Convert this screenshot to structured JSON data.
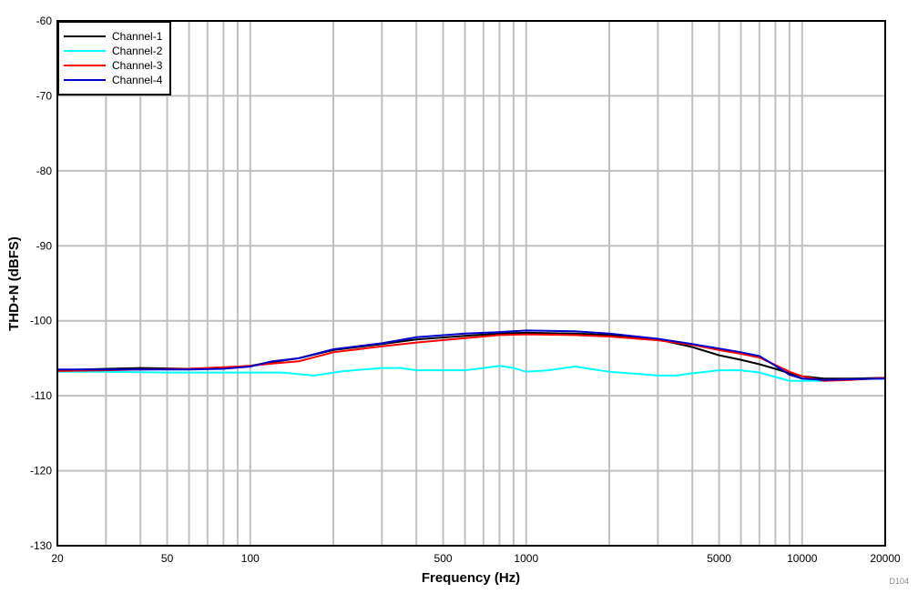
{
  "chart_data": {
    "type": "line",
    "title": "",
    "xlabel": "Frequency (Hz)",
    "ylabel": "THD+N (dBFS)",
    "xscale": "log",
    "xlim": [
      20,
      20000
    ],
    "ylim": [
      -130,
      -60
    ],
    "grid": true,
    "legend_position": "upper-left",
    "x_tick_labels": [
      "20",
      "50",
      "100",
      "500",
      "1000",
      "5000",
      "10000",
      "20000"
    ],
    "x_ticks": [
      20,
      50,
      100,
      500,
      1000,
      5000,
      10000,
      20000
    ],
    "x_minor_grid": [
      30,
      40,
      50,
      60,
      70,
      80,
      90,
      100,
      200,
      300,
      400,
      500,
      600,
      700,
      800,
      900,
      1000,
      2000,
      3000,
      4000,
      5000,
      6000,
      7000,
      8000,
      9000,
      10000
    ],
    "y_tick_labels": [
      "-60",
      "-70",
      "-80",
      "-90",
      "-100",
      "-110",
      "-120",
      "-130"
    ],
    "y_ticks": [
      -60,
      -70,
      -80,
      -90,
      -100,
      -110,
      -120,
      -130
    ],
    "footnote": "D104",
    "series": [
      {
        "name": "Channel-1",
        "color": "#000000",
        "x": [
          20,
          30,
          40,
          60,
          80,
          100,
          120,
          150,
          200,
          300,
          400,
          600,
          800,
          1000,
          1500,
          2000,
          3000,
          4000,
          5000,
          6000,
          7000,
          8000,
          9000,
          10000,
          12000,
          15000,
          20000
        ],
        "y": [
          -106.6,
          -106.4,
          -106.3,
          -106.4,
          -106.3,
          -106.0,
          -105.5,
          -105.0,
          -103.9,
          -103.1,
          -102.5,
          -102.0,
          -101.7,
          -101.6,
          -101.7,
          -101.9,
          -102.5,
          -103.5,
          -104.6,
          -105.2,
          -105.8,
          -106.4,
          -107.0,
          -107.4,
          -107.7,
          -107.7,
          -107.6
        ]
      },
      {
        "name": "Channel-2",
        "color": "#00ffff",
        "x": [
          20,
          30,
          50,
          80,
          100,
          130,
          170,
          220,
          300,
          350,
          400,
          500,
          600,
          700,
          800,
          900,
          1000,
          1200,
          1500,
          2000,
          3000,
          3500,
          4000,
          5000,
          6000,
          7000,
          8000,
          9000,
          10000,
          12000,
          15000,
          20000
        ],
        "y": [
          -106.8,
          -106.8,
          -106.9,
          -106.9,
          -106.9,
          -106.9,
          -107.3,
          -106.7,
          -106.3,
          -106.3,
          -106.6,
          -106.6,
          -106.6,
          -106.3,
          -106.0,
          -106.3,
          -106.8,
          -106.6,
          -106.1,
          -106.8,
          -107.3,
          -107.3,
          -107.0,
          -106.6,
          -106.6,
          -106.9,
          -107.5,
          -108.0,
          -108.0,
          -108.0,
          -107.8,
          -107.7
        ]
      },
      {
        "name": "Channel-3",
        "color": "#ff0000",
        "x": [
          20,
          30,
          40,
          60,
          80,
          100,
          120,
          150,
          200,
          300,
          400,
          600,
          800,
          1000,
          1500,
          2000,
          3000,
          4000,
          5000,
          6000,
          7000,
          8000,
          9000,
          10000,
          12000,
          15000,
          20000
        ],
        "y": [
          -106.7,
          -106.6,
          -106.5,
          -106.4,
          -106.2,
          -106.0,
          -105.7,
          -105.4,
          -104.2,
          -103.4,
          -102.9,
          -102.3,
          -101.9,
          -101.8,
          -101.9,
          -102.1,
          -102.6,
          -103.2,
          -103.9,
          -104.4,
          -104.9,
          -105.9,
          -106.8,
          -107.4,
          -108.0,
          -107.9,
          -107.6
        ]
      },
      {
        "name": "Channel-4",
        "color": "#0000cc",
        "x": [
          20,
          30,
          40,
          60,
          80,
          100,
          120,
          150,
          200,
          300,
          400,
          600,
          800,
          1000,
          1500,
          2000,
          3000,
          4000,
          5000,
          6000,
          7000,
          8000,
          9000,
          10000,
          12000,
          15000,
          20000
        ],
        "y": [
          -106.5,
          -106.5,
          -106.5,
          -106.5,
          -106.4,
          -106.1,
          -105.4,
          -105.0,
          -103.8,
          -103.0,
          -102.2,
          -101.7,
          -101.5,
          -101.3,
          -101.4,
          -101.7,
          -102.4,
          -103.1,
          -103.7,
          -104.2,
          -104.7,
          -106.0,
          -107.2,
          -107.7,
          -107.9,
          -107.8,
          -107.7
        ]
      }
    ]
  }
}
